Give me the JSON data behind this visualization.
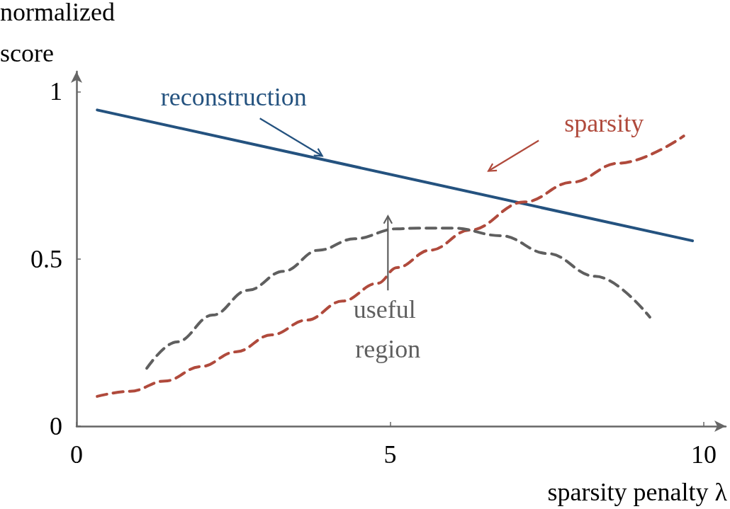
{
  "chart_data": {
    "type": "line",
    "xlabel": "sparsity penalty λ",
    "ylabel": "normalized score",
    "xlim": [
      0,
      10.35
    ],
    "ylim": [
      0,
      1.06
    ],
    "xticks": [
      0,
      5,
      10
    ],
    "yticks": [
      0,
      0.5,
      1
    ],
    "grid": false,
    "legend": false,
    "marker": "none",
    "series": [
      {
        "name": "reconstruction",
        "color": "#24527f",
        "line_style": "solid",
        "x": [
          0.33,
          9.82
        ],
        "values": [
          0.945,
          0.554
        ]
      },
      {
        "name": "sparsity",
        "color": "#b04a3c",
        "line_style": "dashed",
        "x": [
          0.33,
          0.85,
          1.41,
          1.98,
          2.54,
          3.11,
          3.67,
          4.24,
          4.8,
          5.11,
          5.64,
          6.27,
          7.14,
          7.9,
          8.64,
          9.68
        ],
        "values": [
          0.089,
          0.104,
          0.135,
          0.178,
          0.222,
          0.273,
          0.317,
          0.374,
          0.427,
          0.474,
          0.526,
          0.586,
          0.67,
          0.729,
          0.786,
          0.867
        ]
      },
      {
        "color": "#5f5f5f",
        "line_style": "dashed",
        "x": [
          1.12,
          1.6,
          2.17,
          2.73,
          3.3,
          3.86,
          4.43,
          5.11,
          5.45,
          6.01,
          6.77,
          7.51,
          8.27,
          9.14
        ],
        "values": [
          0.173,
          0.252,
          0.332,
          0.406,
          0.463,
          0.526,
          0.56,
          0.59,
          0.592,
          0.592,
          0.569,
          0.516,
          0.448,
          0.326
        ]
      }
    ],
    "annotations": [
      "useful region"
    ]
  }
}
